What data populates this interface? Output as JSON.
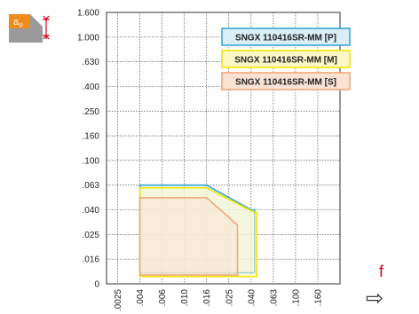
{
  "chart_data": {
    "type": "area",
    "title": "",
    "xlabel": "f",
    "ylabel": "ap",
    "x_scale": "log",
    "y_scale": "log",
    "x_ticks": [
      ".0025",
      ".004",
      ".006",
      ".010",
      ".016",
      ".025",
      ".040",
      ".063",
      ".100",
      ".160"
    ],
    "y_ticks": [
      "1.600",
      "1.000",
      ".630",
      ".400",
      ".250",
      ".160",
      ".100",
      ".063",
      ".040",
      ".025",
      ".016",
      "0"
    ],
    "grid": true,
    "legend_position": "top-right",
    "series": [
      {
        "name": "SNGX 110416SR-MM [P]",
        "color": "#38a8d8",
        "fill": "#d9eef7",
        "points": [
          [
            0.004,
            0.063
          ],
          [
            0.016,
            0.063
          ],
          [
            0.04,
            0.04
          ],
          [
            0.043,
            0.04
          ],
          [
            0.043,
            0.0125
          ],
          [
            0.004,
            0.0125
          ]
        ]
      },
      {
        "name": "SNGX 110416SR-MM [M]",
        "color": "#f2e600",
        "fill": "#fbf7c6",
        "points": [
          [
            0.004,
            0.06
          ],
          [
            0.016,
            0.06
          ],
          [
            0.043,
            0.038
          ],
          [
            0.045,
            0.038
          ],
          [
            0.045,
            0.0117
          ],
          [
            0.004,
            0.0117
          ]
        ]
      },
      {
        "name": "SNGX 110416SR-MM [S]",
        "color": "#f2a77a",
        "fill": "#fbe3d4",
        "points": [
          [
            0.004,
            0.05
          ],
          [
            0.016,
            0.05
          ],
          [
            0.03,
            0.03
          ],
          [
            0.03,
            0.012
          ],
          [
            0.004,
            0.012
          ]
        ]
      }
    ]
  },
  "icons": {
    "insert": "insert-depth-icon",
    "insert_letter": "a",
    "insert_sub": "p",
    "feed_label": "f",
    "feed_arrow": "⇨"
  }
}
